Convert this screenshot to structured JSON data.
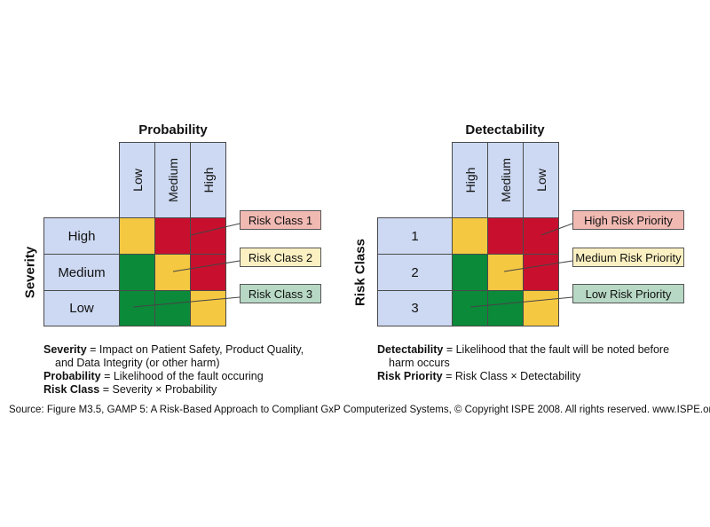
{
  "colors": {
    "header": "#cdd9f2",
    "red": "#c8102e",
    "yellow": "#f5c842",
    "green": "#0b8a3a"
  },
  "left": {
    "title": "Probability",
    "col_headers": [
      "Low",
      "Medium",
      "High"
    ],
    "axis_label": "Severity",
    "row_headers": [
      "High",
      "Medium",
      "Low"
    ],
    "callouts": [
      "Risk Class 1",
      "Risk Class 2",
      "Risk Class 3"
    ],
    "notes": [
      {
        "term": "Severity",
        "text": " = Impact on Patient Safety, Product Quality,",
        "cont": "and Data Integrity (or other harm)"
      },
      {
        "term": "Probability",
        "text": " = Likelihood of the fault occuring"
      },
      {
        "term": "Risk Class",
        "text": " = Severity × Probability"
      }
    ]
  },
  "right": {
    "title": "Detectability",
    "col_headers": [
      "High",
      "Medium",
      "Low"
    ],
    "axis_label": "Risk Class",
    "row_headers": [
      "1",
      "2",
      "3"
    ],
    "callouts": [
      "High Risk Priority",
      "Medium Risk Priority",
      "Low Risk Priority"
    ],
    "notes": [
      {
        "term": "Detectability",
        "text": " = Likelihood that the fault will be noted before",
        "cont": "harm occurs"
      },
      {
        "term": "Risk Priority",
        "text": " = Risk Class × Detectability"
      }
    ]
  },
  "source": "Source: Figure M3.5, GAMP 5: A Risk-Based Approach to Compliant GxP Computerized Systems, © Copyright ISPE 2008. All rights reserved. www.ISPE.org."
}
